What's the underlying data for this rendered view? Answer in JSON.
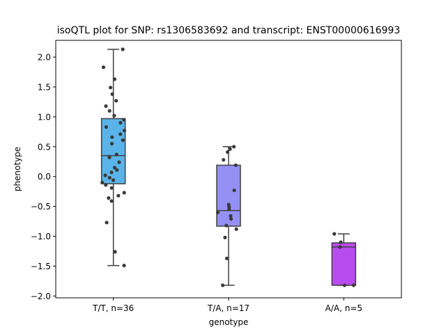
{
  "chart_data": {
    "type": "box",
    "title": "isoQTL plot for SNP: rs1306583692 and transcript: ENST00000616993",
    "xlabel": "genotype",
    "ylabel": "phenotype",
    "ylim": [
      -2.03,
      2.28
    ],
    "yticks": [
      -2.0,
      -1.5,
      -1.0,
      -0.5,
      0.0,
      0.5,
      1.0,
      1.5,
      2.0
    ],
    "ytick_labels": [
      "−2.0",
      "−1.5",
      "−1.0",
      "−0.5",
      "0.0",
      "0.5",
      "1.0",
      "1.5",
      "2.0"
    ],
    "grid": false,
    "categories": [
      "T/T, n=36",
      "T/A, n=17",
      "A/A, n=5"
    ],
    "colors": [
      "#5ab4e9",
      "#9590f4",
      "#b84cf0"
    ],
    "boxes": [
      {
        "whisker_low": -1.49,
        "q1": -0.12,
        "median": 0.35,
        "q3": 0.97,
        "whisker_high": 2.13
      },
      {
        "whisker_low": -1.82,
        "q1": -0.83,
        "median": -0.57,
        "q3": 0.19,
        "whisker_high": 0.5
      },
      {
        "whisker_low": -1.82,
        "q1": -1.82,
        "median": -1.18,
        "q3": -1.11,
        "whisker_high": -0.96
      }
    ],
    "points": [
      [
        2.13,
        1.83,
        1.63,
        1.49,
        1.38,
        1.27,
        1.18,
        1.1,
        1.02,
        0.95,
        0.9,
        0.83,
        0.77,
        0.71,
        0.66,
        0.61,
        0.55,
        0.37,
        0.32,
        0.24,
        0.15,
        0.11,
        0.07,
        0.02,
        -0.02,
        -0.06,
        -0.1,
        -0.14,
        -0.19,
        -0.27,
        -0.32,
        -0.36,
        -0.41,
        -0.77,
        -1.26,
        -1.49
      ],
      [
        0.5,
        0.46,
        0.41,
        0.28,
        0.19,
        -0.23,
        -0.47,
        -0.51,
        -0.55,
        -0.6,
        -0.66,
        -0.71,
        -0.82,
        -0.88,
        -1.02,
        -1.37,
        -1.82
      ],
      [
        -0.96,
        -1.1,
        -1.18,
        -1.82,
        -1.82
      ]
    ]
  }
}
